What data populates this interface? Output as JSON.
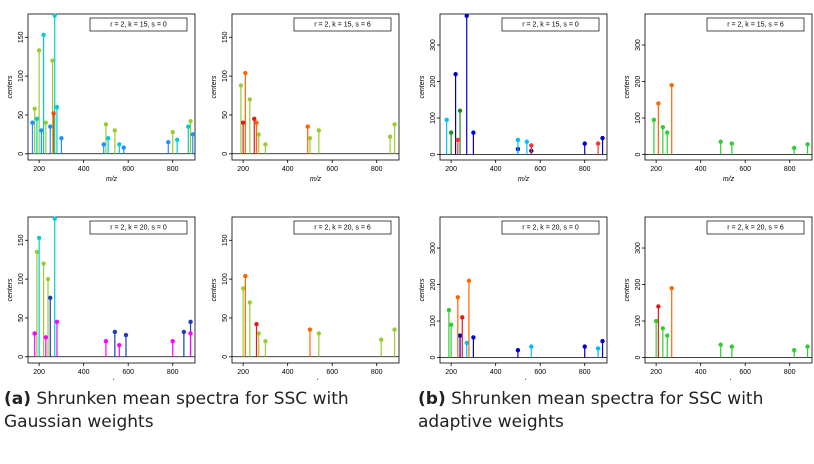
{
  "chart_data": [
    {
      "type": "stem",
      "annotation": "r = 2, k = 15, s = 0",
      "xlabel": "m/z",
      "ylabel": "centers",
      "xlim": [
        150,
        900
      ],
      "xticks": [
        200,
        400,
        600,
        800
      ],
      "ylim": [
        -8,
        180
      ],
      "yticks": [
        0,
        50,
        100,
        150
      ],
      "series": [
        {
          "color": "#9acd32",
          "x": [
            180,
            200,
            230,
            260,
            500,
            540,
            800,
            880
          ],
          "values": [
            58,
            133,
            40,
            120,
            38,
            30,
            28,
            42
          ]
        },
        {
          "color": "#00ced1",
          "x": [
            190,
            220,
            270,
            280,
            510,
            560,
            820,
            870
          ],
          "values": [
            45,
            153,
            178,
            60,
            20,
            12,
            18,
            35
          ]
        },
        {
          "color": "#1e90ff",
          "x": [
            170,
            210,
            250,
            300,
            490,
            580,
            780,
            890
          ],
          "values": [
            40,
            30,
            35,
            20,
            12,
            8,
            15,
            25
          ]
        },
        {
          "color": "#ff4500",
          "x": [
            265
          ],
          "values": [
            52
          ]
        }
      ]
    },
    {
      "type": "stem",
      "annotation": "r = 2, k = 15, s = 6",
      "xlabel": "m/z",
      "ylabel": "centers",
      "xlim": [
        150,
        900
      ],
      "xticks": [
        200,
        400,
        600,
        800
      ],
      "ylim": [
        -8,
        180
      ],
      "yticks": [
        0,
        50,
        100,
        150
      ],
      "series": [
        {
          "color": "#9acd32",
          "x": [
            190,
            230,
            270,
            300,
            500,
            540,
            860,
            880
          ],
          "values": [
            88,
            70,
            25,
            12,
            20,
            30,
            22,
            38
          ]
        },
        {
          "color": "#ff6600",
          "x": [
            210,
            260,
            490
          ],
          "values": [
            104,
            40,
            35
          ]
        },
        {
          "color": "#e31a1c",
          "x": [
            200,
            250
          ],
          "values": [
            40,
            45
          ]
        }
      ]
    },
    {
      "type": "stem",
      "annotation": "r = 2, k = 15, s = 0",
      "xlabel": "m/z",
      "ylabel": "centers",
      "xlim": [
        150,
        900
      ],
      "xticks": [
        200,
        400,
        600,
        800
      ],
      "ylim": [
        -15,
        385
      ],
      "yticks": [
        0,
        100,
        200,
        300
      ],
      "series": [
        {
          "color": "#0000cd",
          "x": [
            220,
            270,
            300,
            500,
            560,
            800,
            880
          ],
          "values": [
            220,
            380,
            60,
            15,
            10,
            30,
            45
          ]
        },
        {
          "color": "#228b22",
          "x": [
            200,
            240
          ],
          "values": [
            60,
            120
          ]
        },
        {
          "color": "#ff3030",
          "x": [
            230,
            560,
            860
          ],
          "values": [
            40,
            25,
            30
          ]
        },
        {
          "color": "#00bfff",
          "x": [
            180,
            500,
            540
          ],
          "values": [
            95,
            40,
            35
          ]
        }
      ]
    },
    {
      "type": "stem",
      "annotation": "r = 2, k = 15, s = 6",
      "xlabel": "m/z",
      "ylabel": "centers",
      "xlim": [
        150,
        900
      ],
      "xticks": [
        200,
        400,
        600,
        800
      ],
      "ylim": [
        -15,
        385
      ],
      "yticks": [
        0,
        100,
        200,
        300
      ],
      "series": [
        {
          "color": "#32cd32",
          "x": [
            190,
            230,
            250,
            490,
            540,
            820,
            880
          ],
          "values": [
            95,
            75,
            60,
            35,
            30,
            18,
            28
          ]
        },
        {
          "color": "#ff6600",
          "x": [
            210,
            270
          ],
          "values": [
            140,
            190
          ]
        }
      ]
    },
    {
      "type": "stem",
      "annotation": "r = 2, k = 20, s = 0",
      "xlabel": "m/z",
      "ylabel": "centers",
      "xlim": [
        150,
        900
      ],
      "xticks": [
        200,
        400,
        600,
        800
      ],
      "ylim": [
        -8,
        180
      ],
      "yticks": [
        0,
        50,
        100,
        150
      ],
      "series": [
        {
          "color": "#9acd32",
          "x": [
            190,
            220,
            240
          ],
          "values": [
            135,
            120,
            100
          ]
        },
        {
          "color": "#00ced1",
          "x": [
            200,
            270
          ],
          "values": [
            153,
            178
          ]
        },
        {
          "color": "#1e3cb4",
          "x": [
            250,
            540,
            590,
            850,
            880
          ],
          "values": [
            76,
            32,
            28,
            32,
            45
          ]
        },
        {
          "color": "#ff00ff",
          "x": [
            180,
            230,
            280,
            500,
            560,
            800,
            880
          ],
          "values": [
            30,
            25,
            45,
            20,
            15,
            20,
            30
          ]
        }
      ]
    },
    {
      "type": "stem",
      "annotation": "r = 2, k = 20, s = 6",
      "xlabel": "m/z",
      "ylabel": "centers",
      "xlim": [
        150,
        900
      ],
      "xticks": [
        200,
        400,
        600,
        800
      ],
      "ylim": [
        -8,
        180
      ],
      "yticks": [
        0,
        50,
        100,
        150
      ],
      "series": [
        {
          "color": "#9acd32",
          "x": [
            200,
            230,
            270,
            300,
            540,
            820,
            880
          ],
          "values": [
            88,
            70,
            30,
            20,
            30,
            22,
            35
          ]
        },
        {
          "color": "#ff6600",
          "x": [
            210,
            500
          ],
          "values": [
            104,
            35
          ]
        },
        {
          "color": "#e31a1c",
          "x": [
            260
          ],
          "values": [
            42
          ]
        }
      ]
    },
    {
      "type": "stem",
      "annotation": "r = 2, k = 20, s = 0",
      "xlabel": "m/z",
      "ylabel": "centers",
      "xlim": [
        150,
        900
      ],
      "xticks": [
        200,
        400,
        600,
        800
      ],
      "ylim": [
        -15,
        385
      ],
      "yticks": [
        0,
        100,
        200,
        300
      ],
      "series": [
        {
          "color": "#32cd32",
          "x": [
            190,
            200
          ],
          "values": [
            130,
            90
          ]
        },
        {
          "color": "#0000cd",
          "x": [
            240,
            300,
            500,
            800,
            880
          ],
          "values": [
            60,
            55,
            20,
            30,
            45
          ]
        },
        {
          "color": "#00bfff",
          "x": [
            270,
            560,
            860
          ],
          "values": [
            40,
            30,
            25
          ]
        },
        {
          "color": "#ff6600",
          "x": [
            230,
            280
          ],
          "values": [
            165,
            210
          ]
        },
        {
          "color": "#e31a1c",
          "x": [
            250
          ],
          "values": [
            110
          ]
        }
      ]
    },
    {
      "type": "stem",
      "annotation": "r = 2, k = 20, s = 6",
      "xlabel": "m/z",
      "ylabel": "centers",
      "xlim": [
        150,
        900
      ],
      "xticks": [
        200,
        400,
        600,
        800
      ],
      "ylim": [
        -15,
        385
      ],
      "yticks": [
        0,
        100,
        200,
        300
      ],
      "series": [
        {
          "color": "#32cd32",
          "x": [
            200,
            230,
            250,
            490,
            540,
            820,
            880
          ],
          "values": [
            100,
            80,
            60,
            35,
            30,
            20,
            30
          ]
        },
        {
          "color": "#ff6600",
          "x": [
            270
          ],
          "values": [
            190
          ]
        },
        {
          "color": "#e31a1c",
          "x": [
            210
          ],
          "values": [
            140
          ]
        }
      ]
    }
  ],
  "captions": [
    {
      "label": "(a)",
      "text": "Shrunken mean spectra for SSC with Gaussian weights"
    },
    {
      "label": "(b)",
      "text": "Shrunken mean spectra for SSC with adaptive weights"
    }
  ]
}
